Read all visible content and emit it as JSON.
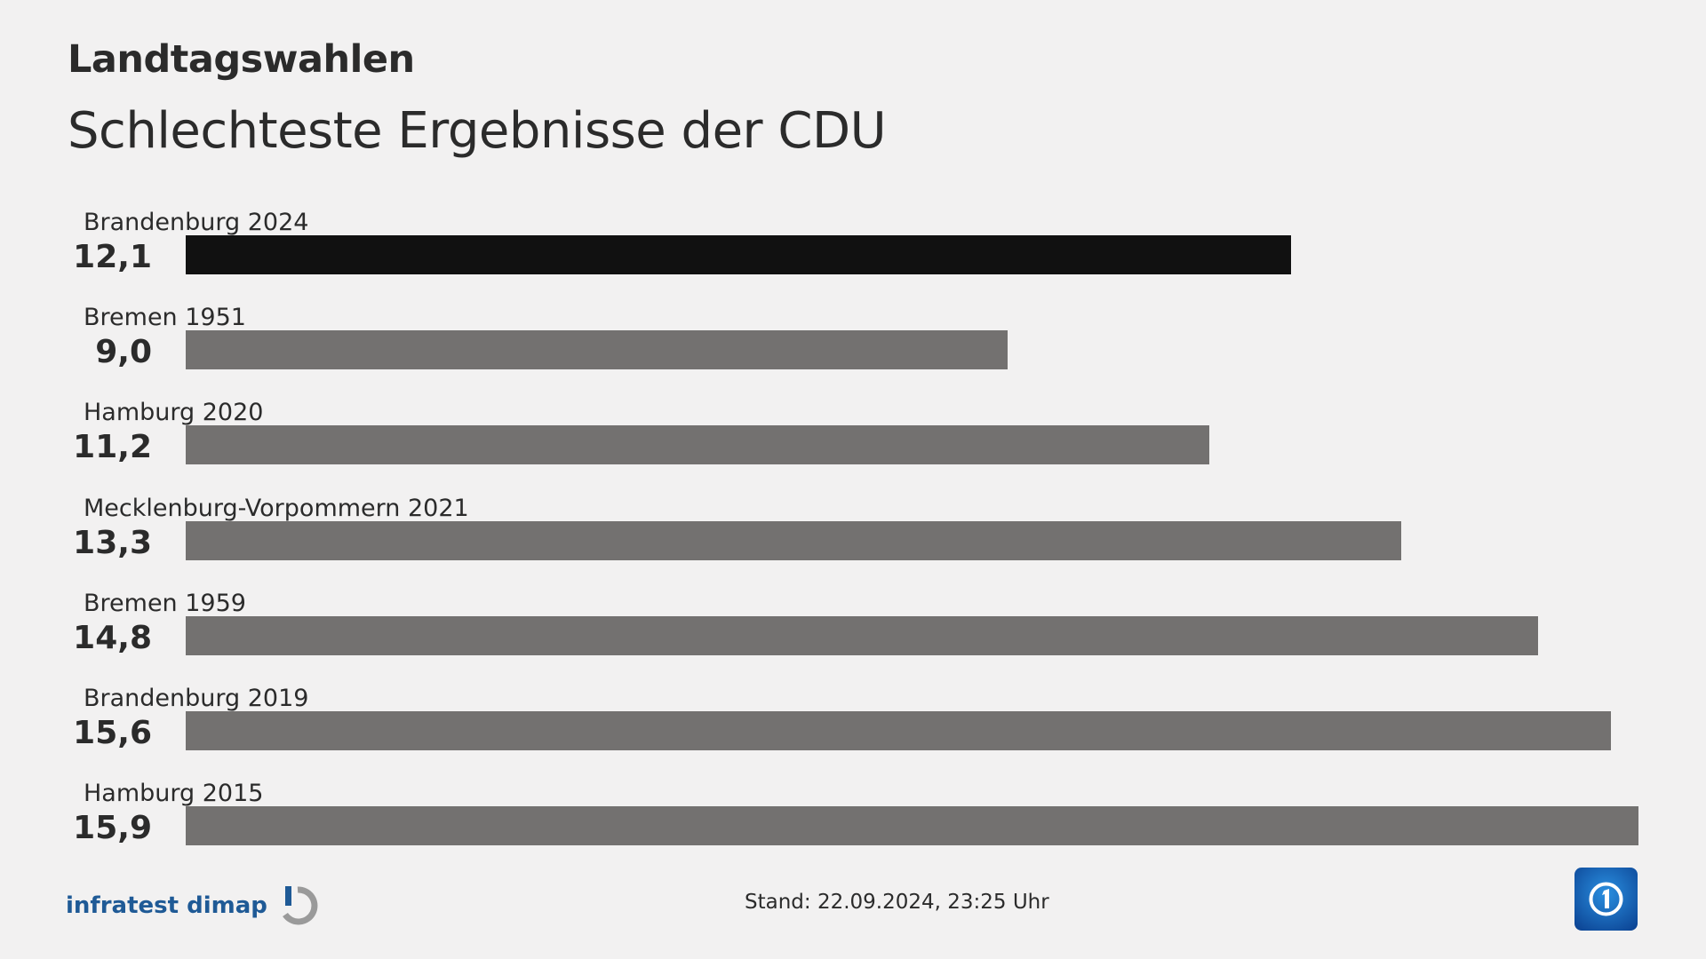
{
  "header": {
    "kicker": "Landtagswahlen",
    "title": "Schlechteste Ergebnisse der CDU"
  },
  "chart_data": {
    "type": "bar",
    "orientation": "horizontal",
    "categories": [
      "Brandenburg 2024",
      "Bremen 1951",
      "Hamburg 2020",
      "Mecklenburg-Vorpommern 2021",
      "Bremen 1959",
      "Brandenburg 2019",
      "Hamburg 2015"
    ],
    "values": [
      12.1,
      9.0,
      11.2,
      13.3,
      14.8,
      15.6,
      15.9
    ],
    "value_labels": [
      "12,1",
      "9,0",
      "11,2",
      "13,3",
      "14,8",
      "15,6",
      "15,9"
    ],
    "colors": [
      "#111111",
      "#737170",
      "#737170",
      "#737170",
      "#737170",
      "#737170",
      "#737170"
    ],
    "xlim": [
      0,
      15.9
    ],
    "grid": false
  },
  "footer": {
    "source_logo": "infratest dimap",
    "stand": "Stand:  22.09.2024, 23:25 Uhr",
    "broadcaster_logo": "ARD"
  }
}
